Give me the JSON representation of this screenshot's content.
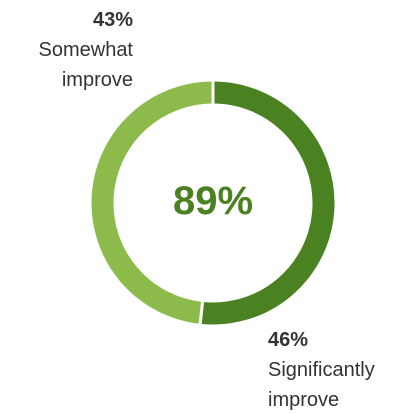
{
  "chart_data": {
    "type": "pie",
    "variant": "donut",
    "center_label": "89%",
    "slices": [
      {
        "value": 46,
        "value_label": "46%",
        "name_lines": [
          "Significantly",
          "improve"
        ],
        "color": "#4a8121"
      },
      {
        "value": 43,
        "value_label": "43%",
        "name_lines": [
          "Somewhat",
          "improve"
        ],
        "color": "#8cbb4c"
      }
    ],
    "center_color": "#4a8121",
    "label_color": "#333333",
    "gap_color": "#ffffff"
  }
}
